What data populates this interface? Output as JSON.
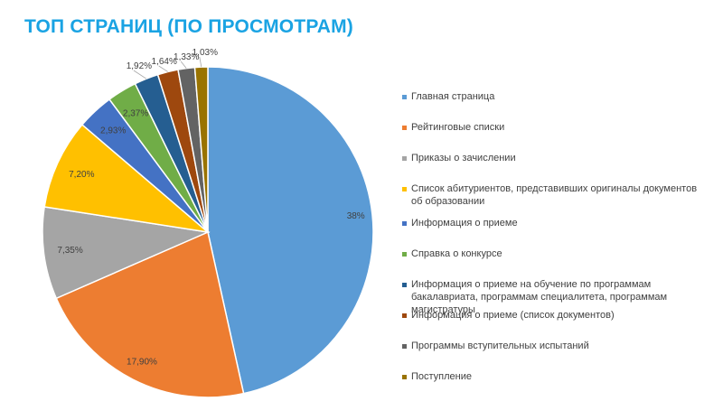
{
  "title": "ТОП СТРАНИЦ (ПО ПРОСМОТРАМ)",
  "chart_data": {
    "type": "pie",
    "title": "ТОП СТРАНИЦ (ПО ПРОСМОТРАМ)",
    "legend_position": "right",
    "slices": [
      {
        "name": "Главная страница",
        "value": 38,
        "label": "38%",
        "color": "#5b9bd5"
      },
      {
        "name": "Рейтинговые списки",
        "value": 17.9,
        "label": "17,90%",
        "color": "#ed7d31"
      },
      {
        "name": "Приказы о зачислении",
        "value": 7.35,
        "label": "7,35%",
        "color": "#a5a5a5"
      },
      {
        "name": "Список абитуриентов, представивших оригиналы документов об образовании",
        "value": 7.2,
        "label": "7,20%",
        "color": "#ffc000"
      },
      {
        "name": "Информация о приеме",
        "value": 2.93,
        "label": "2,93%",
        "color": "#4472c4"
      },
      {
        "name": "Справка о конкурсе",
        "value": 2.37,
        "label": "2,37%",
        "color": "#70ad47"
      },
      {
        "name": "Информация о приеме на обучение по программам бакалавриата, программам специалитета, программам магистратуры",
        "value": 1.92,
        "label": "1,92%",
        "color": "#255e91"
      },
      {
        "name": "Информация о приеме (список документов)",
        "value": 1.64,
        "label": "1,64%",
        "color": "#9e480e"
      },
      {
        "name": "Программы вступительных испытаний",
        "value": 1.33,
        "label": "1,33%",
        "color": "#636363"
      },
      {
        "name": "Поступление",
        "value": 1.03,
        "label": "1,03%",
        "color": "#997300"
      }
    ]
  }
}
